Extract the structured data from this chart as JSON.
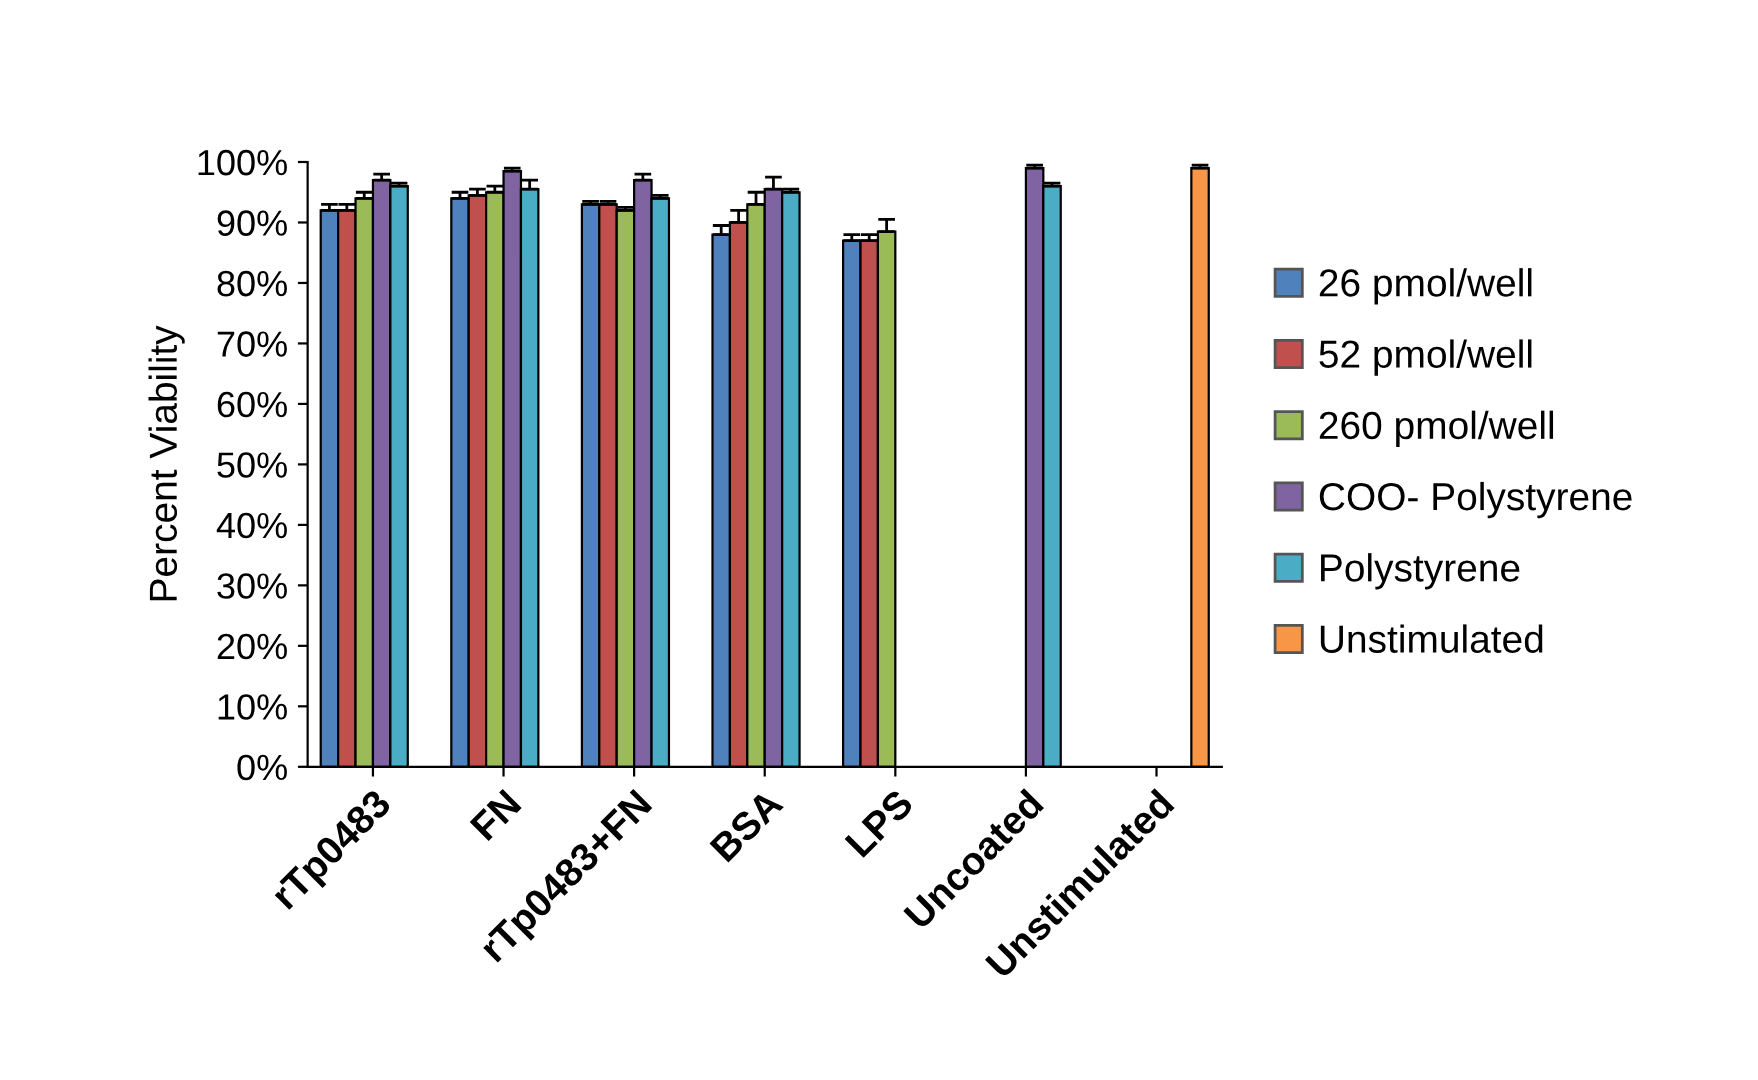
{
  "chart_data": {
    "type": "bar",
    "ylabel": "Percent Viability",
    "categories": [
      "rTp0483",
      "FN",
      "rTp0483+FN",
      "BSA",
      "LPS",
      "Uncoated",
      "Unstimulated"
    ],
    "series": [
      {
        "name": "26 pmol/well",
        "color": "#4f81bd",
        "values": [
          92,
          94,
          93,
          88,
          87,
          null,
          null
        ],
        "errors": [
          1,
          1,
          0.5,
          1.5,
          1,
          null,
          null
        ]
      },
      {
        "name": "52 pmol/well",
        "color": "#c0504d",
        "values": [
          92,
          94.5,
          93,
          90,
          87,
          null,
          null
        ],
        "errors": [
          1,
          1,
          0.5,
          2,
          1,
          null,
          null
        ]
      },
      {
        "name": "260 pmol/well",
        "color": "#9bbb59",
        "values": [
          94,
          95,
          92,
          93,
          88.5,
          null,
          null
        ],
        "errors": [
          1,
          1,
          0.5,
          2,
          2,
          null,
          null
        ]
      },
      {
        "name": "COO- Polystyrene",
        "color": "#8064a2",
        "values": [
          97,
          98.5,
          97,
          95.5,
          null,
          99,
          null
        ],
        "errors": [
          1,
          0.5,
          1,
          2,
          null,
          0.5,
          null
        ]
      },
      {
        "name": "Polystyrene",
        "color": "#4bacc6",
        "values": [
          96,
          95.5,
          94,
          95,
          null,
          96,
          null
        ],
        "errors": [
          0.5,
          1.5,
          0.5,
          0.5,
          null,
          0.5,
          null
        ]
      },
      {
        "name": "Unstimulated",
        "color": "#f79646",
        "values": [
          null,
          null,
          null,
          null,
          null,
          null,
          99
        ],
        "errors": [
          null,
          null,
          null,
          null,
          null,
          null,
          0.5
        ]
      }
    ],
    "ylim": [
      0,
      100
    ],
    "yticks": [
      {
        "value": 0,
        "label": "0%"
      },
      {
        "value": 10,
        "label": "10%"
      },
      {
        "value": 20,
        "label": "20%"
      },
      {
        "value": 30,
        "label": "30%"
      },
      {
        "value": 40,
        "label": "40%"
      },
      {
        "value": 50,
        "label": "50%"
      },
      {
        "value": 60,
        "label": "60%"
      },
      {
        "value": 70,
        "label": "70%"
      },
      {
        "value": 80,
        "label": "80%"
      },
      {
        "value": 90,
        "label": "90%"
      },
      {
        "value": 100,
        "label": "100%"
      }
    ],
    "grid": false,
    "legend": "right"
  }
}
